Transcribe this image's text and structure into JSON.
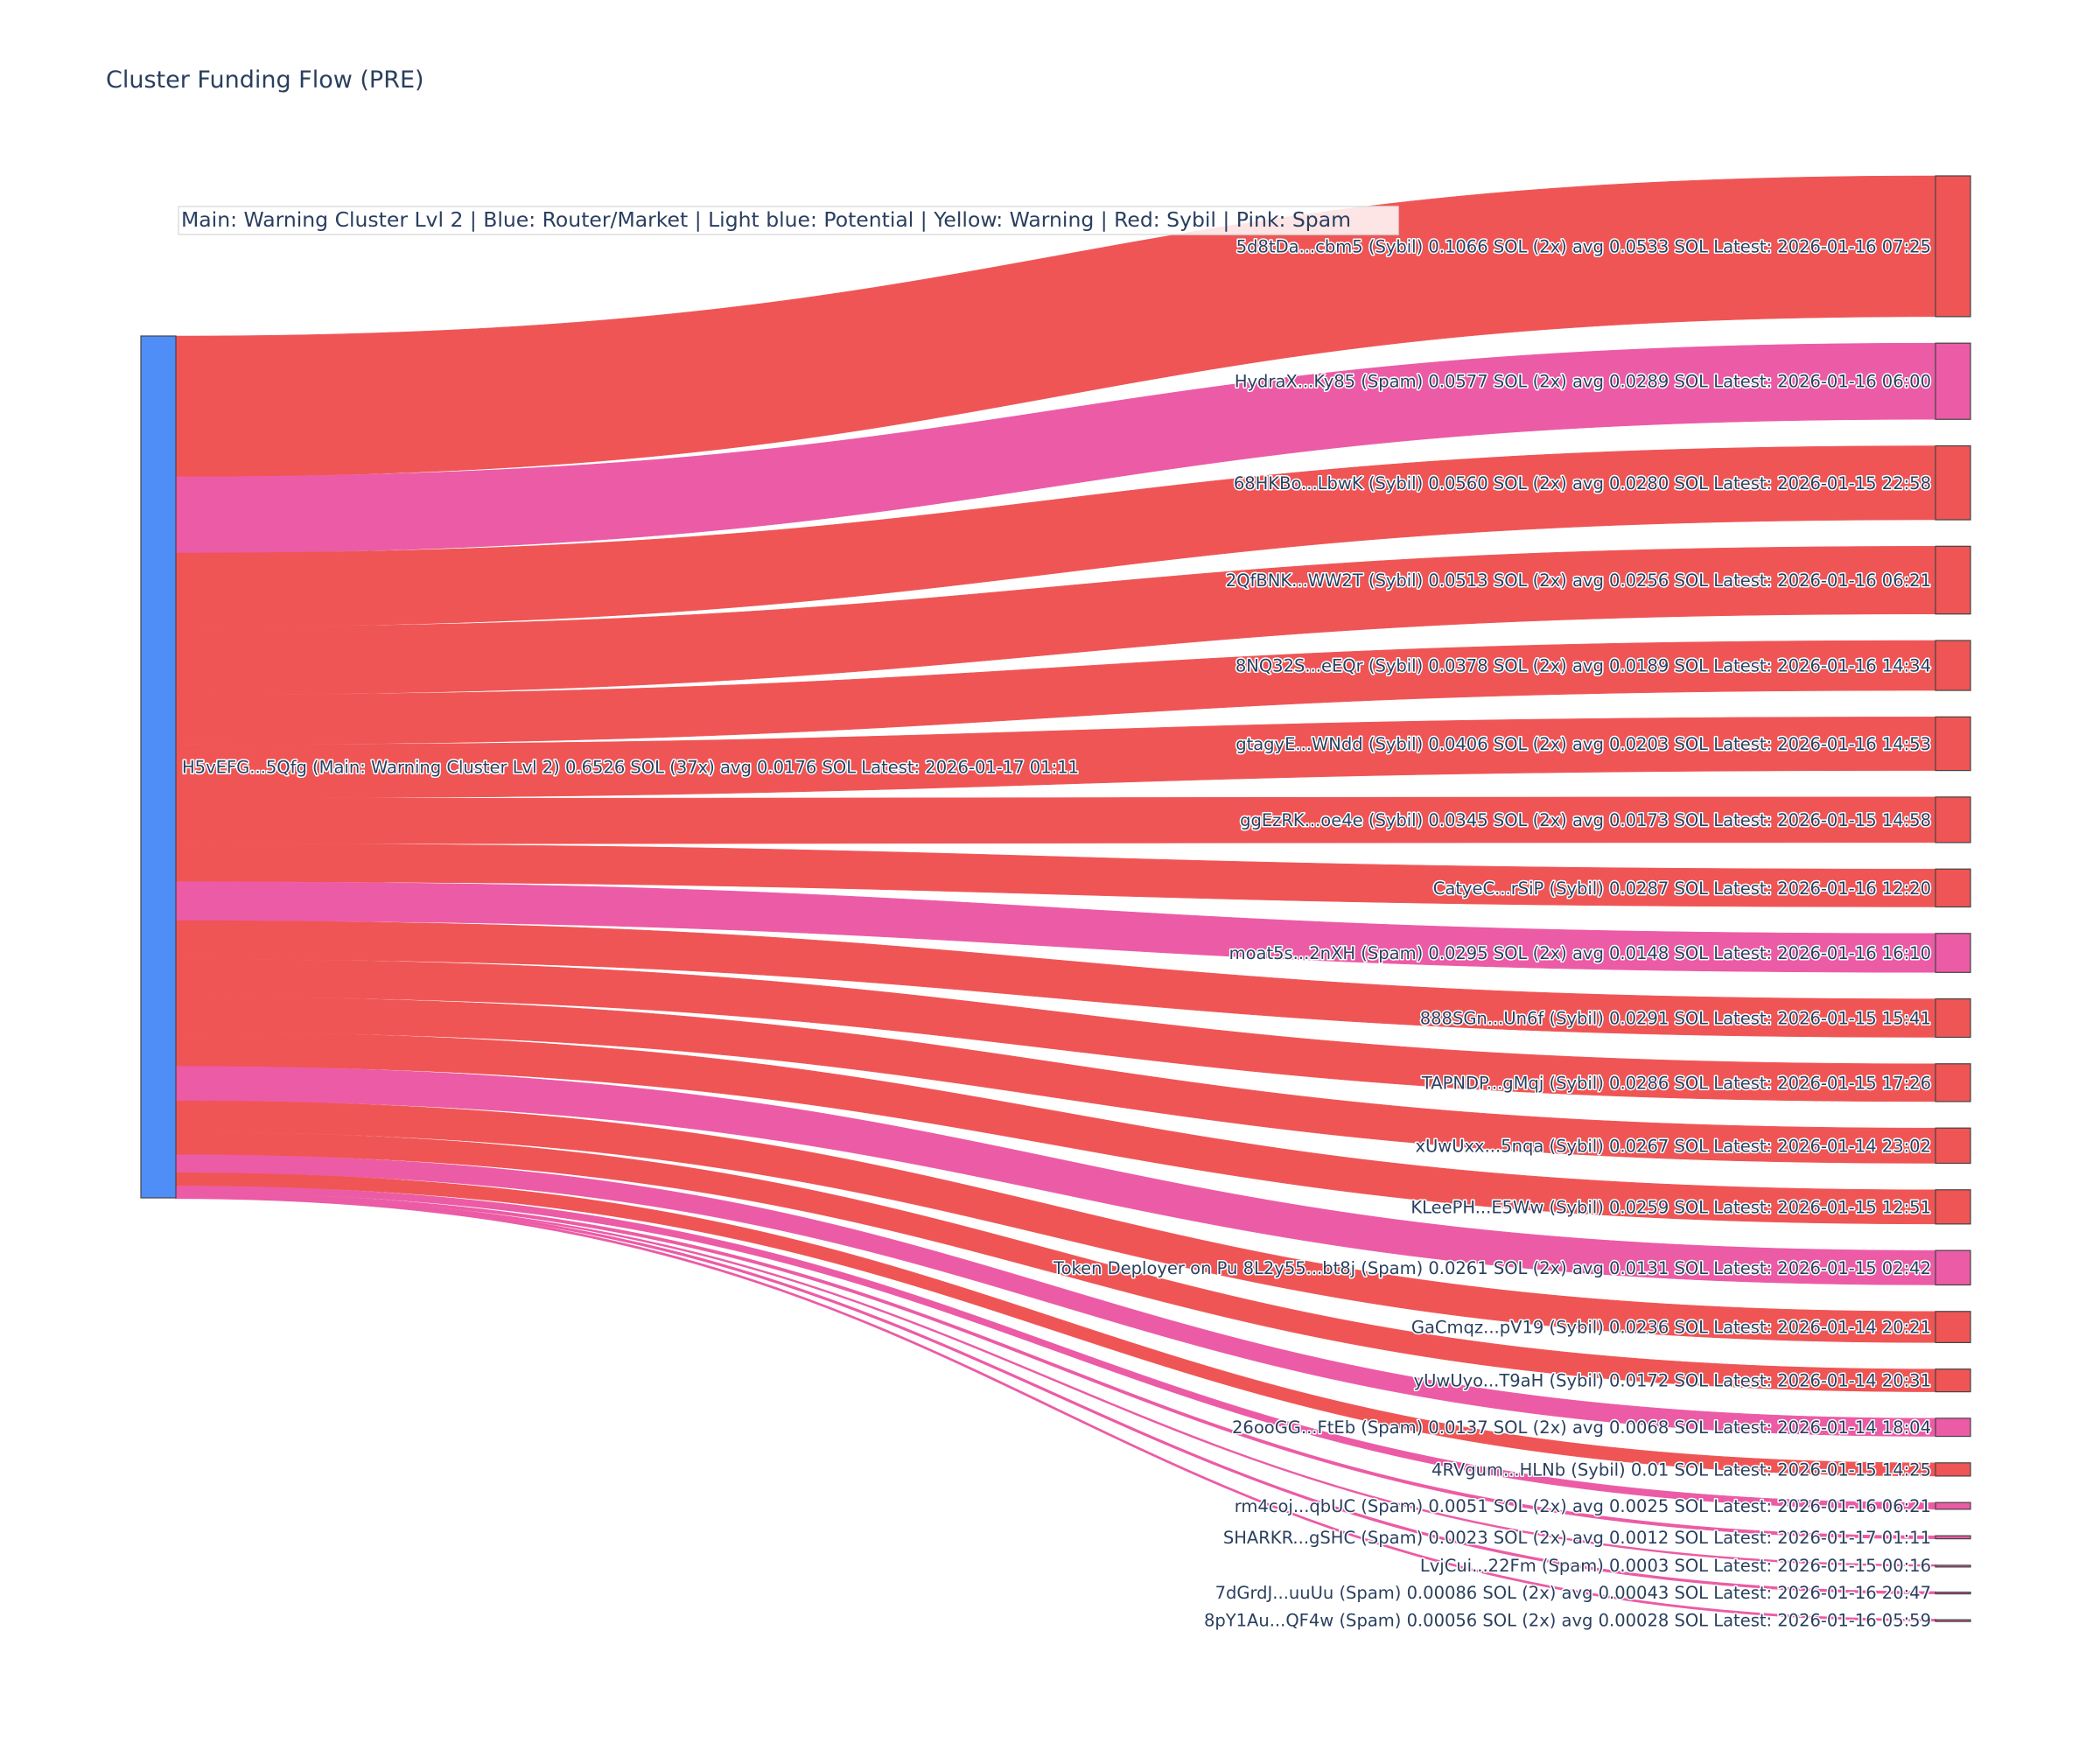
{
  "chart_data": {
    "type": "sankey",
    "title": "Cluster Funding Flow (PRE)",
    "annotation": "Main: Warning Cluster Lvl 2  |  Blue: Router/Market | Light blue: Potential | Yellow: Warning | Red: Sybil | Pink: Spam",
    "colors": {
      "Router/Market": "#4f8ef7",
      "Sybil": "#ef5555",
      "Spam": "#ec5ba5",
      "node_border": "#444444"
    },
    "source": {
      "label": "H5vEFG...5Qfg (Main: Warning Cluster Lvl 2) 0.6526 SOL (37x) avg 0.0176 SOL Latest: 2026-01-17 01:11",
      "category": "Router/Market",
      "value": 0.6526
    },
    "targets": [
      {
        "label": "5d8tDa...cbm5 (Sybil) 0.1066 SOL (2x) avg 0.0533 SOL Latest: 2026-01-16 07:25",
        "category": "Sybil",
        "value": 0.1066
      },
      {
        "label": "HydraX...Ky85 (Spam) 0.0577 SOL (2x) avg 0.0289 SOL Latest: 2026-01-16 06:00",
        "category": "Spam",
        "value": 0.0577
      },
      {
        "label": "68HKBo...LbwK (Sybil) 0.0560 SOL (2x) avg 0.0280 SOL Latest: 2026-01-15 22:58",
        "category": "Sybil",
        "value": 0.056
      },
      {
        "label": "2QfBNK...WW2T (Sybil) 0.0513 SOL (2x) avg 0.0256 SOL Latest: 2026-01-16 06:21",
        "category": "Sybil",
        "value": 0.0513
      },
      {
        "label": "8NQ32S...eEQr (Sybil) 0.0378 SOL (2x) avg 0.0189 SOL Latest: 2026-01-16 14:34",
        "category": "Sybil",
        "value": 0.0378
      },
      {
        "label": "gtagyE...WNdd (Sybil) 0.0406 SOL (2x) avg 0.0203 SOL Latest: 2026-01-16 14:53",
        "category": "Sybil",
        "value": 0.0406
      },
      {
        "label": "ggEzRK...oe4e (Sybil) 0.0345 SOL (2x) avg 0.0173 SOL Latest: 2026-01-15 14:58",
        "category": "Sybil",
        "value": 0.0345
      },
      {
        "label": "CatyeC...rSiP (Sybil) 0.0287 SOL Latest: 2026-01-16 12:20",
        "category": "Sybil",
        "value": 0.0287
      },
      {
        "label": "moat5s...2nXH (Spam) 0.0295 SOL (2x) avg 0.0148 SOL Latest: 2026-01-16 16:10",
        "category": "Spam",
        "value": 0.0295
      },
      {
        "label": "888SGn...Un6f (Sybil) 0.0291 SOL Latest: 2026-01-15 15:41",
        "category": "Sybil",
        "value": 0.0291
      },
      {
        "label": "TAPNDP...gMqj (Sybil) 0.0286 SOL Latest: 2026-01-15 17:26",
        "category": "Sybil",
        "value": 0.0286
      },
      {
        "label": "xUwUxx...5nqa (Sybil) 0.0267 SOL Latest: 2026-01-14 23:02",
        "category": "Sybil",
        "value": 0.0267
      },
      {
        "label": "KLeePH...E5Ww (Sybil) 0.0259 SOL Latest: 2026-01-15 12:51",
        "category": "Sybil",
        "value": 0.0259
      },
      {
        "label": "Token Deployer on Pu 8L2y55...bt8j (Spam) 0.0261 SOL (2x) avg 0.0131 SOL Latest: 2026-01-15 02:42",
        "category": "Spam",
        "value": 0.0261
      },
      {
        "label": "GaCmqz...pV19 (Sybil) 0.0236 SOL Latest: 2026-01-14 20:21",
        "category": "Sybil",
        "value": 0.0236
      },
      {
        "label": "yUwUyo...T9aH (Sybil) 0.0172 SOL Latest: 2026-01-14 20:31",
        "category": "Sybil",
        "value": 0.0172
      },
      {
        "label": "26ooGG...FtEb (Spam) 0.0137 SOL (2x) avg 0.0068 SOL Latest: 2026-01-14 18:04",
        "category": "Spam",
        "value": 0.0137
      },
      {
        "label": "4RVgum...HLNb (Sybil) 0.01 SOL Latest: 2026-01-15 14:25",
        "category": "Sybil",
        "value": 0.01
      },
      {
        "label": "rm4coj...qbUC (Spam) 0.0051 SOL (2x) avg 0.0025 SOL Latest: 2026-01-16 06:21",
        "category": "Spam",
        "value": 0.0051
      },
      {
        "label": "SHARKR...gSHC (Spam) 0.0023 SOL (2x) avg 0.0012 SOL Latest: 2026-01-17 01:11",
        "category": "Spam",
        "value": 0.0023
      },
      {
        "label": "LvjCui...22Fm (Spam) 0.0003 SOL Latest: 2026-01-15 00:16",
        "category": "Spam",
        "value": 0.0003
      },
      {
        "label": "7dGrdJ...uuUu (Spam) 0.00086 SOL (2x) avg 0.00043 SOL Latest: 2026-01-16 20:47",
        "category": "Spam",
        "value": 0.00086
      },
      {
        "label": "8pY1Au...QF4w (Spam) 0.00056 SOL (2x) avg 0.00028 SOL Latest: 2026-01-16 05:59",
        "category": "Spam",
        "value": 0.00056
      }
    ]
  }
}
